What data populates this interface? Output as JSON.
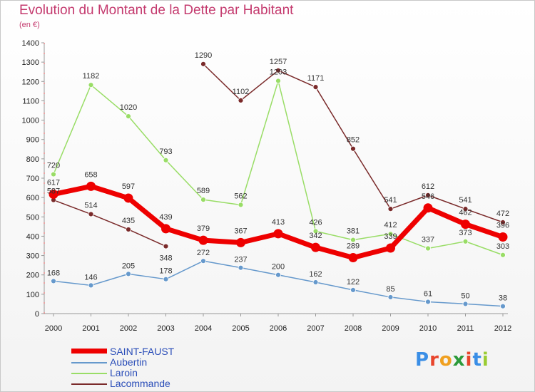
{
  "chart_data": {
    "type": "line",
    "title": "Evolution du Montant de la Dette par Habitant",
    "subtitle": "(en €)",
    "x": [
      "2000",
      "2001",
      "2002",
      "2003",
      "2004",
      "2005",
      "2006",
      "2007",
      "2008",
      "2009",
      "2010",
      "2011",
      "2012"
    ],
    "ylim": [
      0,
      1400
    ],
    "yticks": [
      0,
      100,
      200,
      300,
      400,
      500,
      600,
      700,
      800,
      900,
      1000,
      1100,
      1200,
      1300,
      1400
    ],
    "grid": false,
    "legend_position": "bottom-left",
    "series": [
      {
        "name": "SAINT-FAUST",
        "color": "#ee0000",
        "width": 7,
        "values": [
          617,
          658,
          597,
          439,
          379,
          367,
          413,
          342,
          289,
          339,
          546,
          462,
          396
        ]
      },
      {
        "name": "Aubertin",
        "color": "#6699cc",
        "width": 1.5,
        "values": [
          168,
          146,
          205,
          178,
          272,
          237,
          200,
          162,
          122,
          85,
          61,
          50,
          38
        ]
      },
      {
        "name": "Laroin",
        "color": "#99dd66",
        "width": 1.5,
        "values": [
          720,
          1182,
          1020,
          793,
          589,
          562,
          1203,
          426,
          381,
          412,
          337,
          373,
          303
        ]
      },
      {
        "name": "Lacommande",
        "color": "#7a2a2a",
        "width": 1.5,
        "values": [
          587,
          514,
          435,
          348,
          1290,
          1102,
          1257,
          1171,
          852,
          541,
          612,
          541,
          472
        ]
      }
    ]
  },
  "legend": {
    "items": [
      "SAINT-FAUST",
      "Aubertin",
      "Laroin",
      "Lacommande"
    ]
  },
  "brand": {
    "logo_text": "Proxiti",
    "colors": [
      "#3a8ee6",
      "#e8452c",
      "#f0a020",
      "#2c9a3a",
      "#e8452c",
      "#3a8ee6",
      "#9acc33"
    ]
  }
}
